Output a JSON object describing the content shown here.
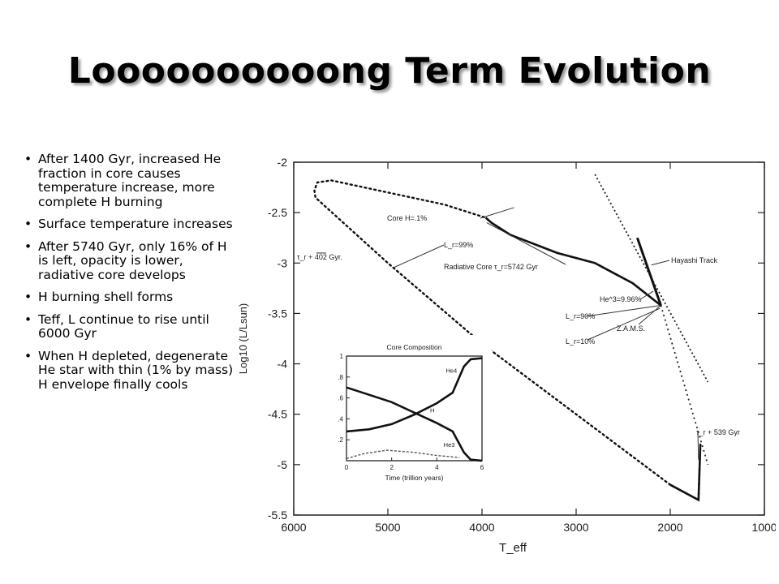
{
  "slide": {
    "title": "Loooooooooong Term Evolution",
    "bullets": [
      "After 1400 Gyr, increased He fraction in core causes temperature increase, more complete H burning",
      "Surface temperature increases",
      "After 5740 Gyr, only 16% of H is left, opacity is lower, radiative core develops",
      "H burning shell forms",
      "Teff, L continue to rise until 6000 Gyr",
      "When H depleted, degenerate He star with thin (1% by mass) H envelope finally cools"
    ]
  },
  "chart_data": [
    {
      "type": "line",
      "xlabel": "T_eff",
      "ylabel": "Log10 (L/Lsun)",
      "xlim": [
        6000,
        1000
      ],
      "ylim": [
        -5.5,
        -2
      ],
      "x_reversed": true,
      "x_ticks": [
        "6000",
        "5000",
        "4000",
        "3000",
        "2000",
        "1000"
      ],
      "y_ticks": [
        "-2",
        "-2.5",
        "-3",
        "-3.5",
        "-4",
        "-4.5",
        "-5",
        "-5.5"
      ],
      "series": [
        {
          "style": "evolutionary-track",
          "points": [
            [
              2100,
              -3.42
            ],
            [
              2400,
              -3.2
            ],
            [
              2800,
              -3.0
            ],
            [
              3200,
              -2.9
            ],
            [
              3700,
              -2.72
            ],
            [
              3900,
              -2.6
            ],
            [
              3960,
              -2.55
            ],
            [
              4400,
              -2.42
            ],
            [
              5000,
              -2.3
            ],
            [
              5600,
              -2.18
            ],
            [
              5750,
              -2.2
            ],
            [
              5780,
              -2.28
            ],
            [
              5770,
              -2.35
            ],
            [
              5000,
              -3.0
            ],
            [
              4000,
              -3.8
            ],
            [
              3000,
              -4.5
            ],
            [
              2000,
              -5.2
            ],
            [
              1700,
              -5.35
            ],
            [
              1680,
              -4.8
            ]
          ]
        },
        {
          "style": "hayashi-track-dotted",
          "points": [
            [
              2800,
              -2.12
            ],
            [
              1600,
              -4.18
            ]
          ]
        },
        {
          "style": "hayashi-track-solid",
          "points": [
            [
              2350,
              -2.75
            ],
            [
              2100,
              -3.42
            ]
          ]
        },
        {
          "style": "zams-dotted",
          "points": [
            [
              2100,
              -3.42
            ],
            [
              1600,
              -5.0
            ]
          ]
        }
      ],
      "annotations": [
        {
          "text": "Core H=.1%"
        },
        {
          "text": "L_r=99%"
        },
        {
          "text": "τ_r + 402 Gyr."
        },
        {
          "text": "Radiative Core τ_r=5742 Gyr"
        },
        {
          "text": "Hayashi Track"
        },
        {
          "text": "He^3=9.96%"
        },
        {
          "text": "L_r=90%"
        },
        {
          "text": "Z.A.M.S."
        },
        {
          "text": "L_r=10%"
        },
        {
          "text": "τ_r + 539 Gyr"
        }
      ]
    },
    {
      "type": "line",
      "title": "Core Composition",
      "xlabel": "Time (trillion years)",
      "xlim": [
        0,
        6
      ],
      "ylim": [
        0,
        1
      ],
      "x_ticks": [
        "0",
        "2",
        "4",
        "6"
      ],
      "y_ticks": [
        ".2",
        ".4",
        ".6",
        ".8",
        "1"
      ],
      "series": [
        {
          "name": "He4",
          "x": [
            0,
            1,
            2,
            3,
            4,
            4.7,
            5.2,
            5.5,
            6
          ],
          "y": [
            0.28,
            0.3,
            0.35,
            0.44,
            0.55,
            0.65,
            0.9,
            0.97,
            0.98
          ]
        },
        {
          "name": "H",
          "x": [
            0,
            1,
            2,
            3,
            4,
            4.7,
            5.2,
            5.5,
            6
          ],
          "y": [
            0.7,
            0.63,
            0.56,
            0.46,
            0.36,
            0.28,
            0.08,
            0.01,
            0
          ]
        },
        {
          "name": "He3",
          "x": [
            0,
            0.8,
            1.8,
            3,
            4,
            5
          ],
          "y": [
            0.02,
            0.07,
            0.1,
            0.08,
            0.05,
            0.03
          ]
        }
      ]
    }
  ]
}
